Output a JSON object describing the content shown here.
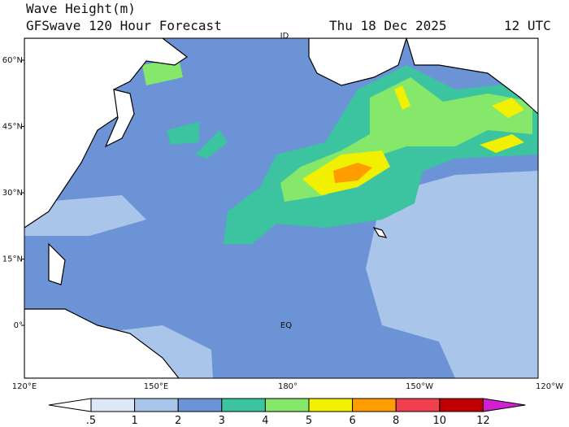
{
  "header": {
    "title": "Wave Height(m)",
    "subtitle": "GFSwave 120 Hour Forecast",
    "date": "Thu 18 Dec 2025",
    "time": "12 UTC"
  },
  "map": {
    "lat_labels": [
      "60°N",
      "45°N",
      "30°N",
      "15°N",
      "0°"
    ],
    "lon_labels": [
      "120°E",
      "150°E",
      "180°",
      "150°W",
      "120°W"
    ],
    "annotations": [
      "ID",
      "EQ"
    ]
  },
  "colorbar": {
    "labels": [
      ".5",
      "1",
      "2",
      "3",
      "4",
      "5",
      "6",
      "8",
      "10",
      "12"
    ],
    "colors": [
      "#ffffff",
      "#dce8f7",
      "#a9c5ea",
      "#6b93d6",
      "#3cc3a0",
      "#86e86a",
      "#f0f000",
      "#ff9c00",
      "#f04050",
      "#c00000",
      "#d020d0"
    ]
  }
}
